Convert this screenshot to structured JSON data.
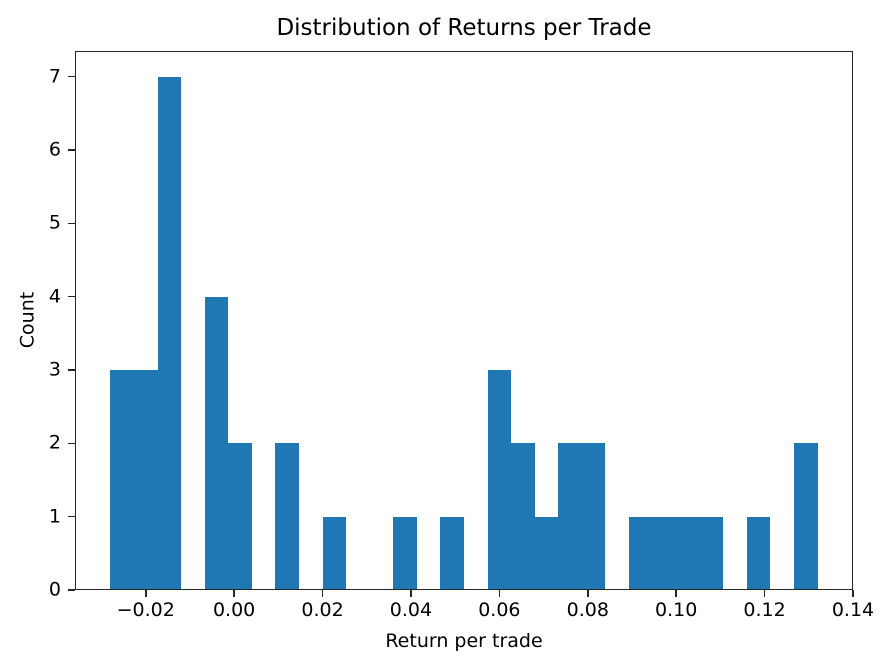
{
  "chart_data": {
    "type": "bar",
    "subtype": "histogram",
    "title": "Distribution of Returns per Trade",
    "xlabel": "Return per trade",
    "ylabel": "Count",
    "bar_color": "#1f77b4",
    "spine_color": "#262626",
    "text_color": "#000000",
    "background_color": "#ffffff",
    "grid": false,
    "legend_position": "none",
    "xlim": [
      -0.036,
      0.14
    ],
    "ylim": [
      0,
      7.35
    ],
    "n_bins": 30,
    "bin_width": 0.0053333,
    "bin_edges": [
      -0.028,
      -0.022667,
      -0.017333,
      -0.012,
      -0.006667,
      -0.001333,
      0.004,
      0.009333,
      0.014667,
      0.02,
      0.025333,
      0.030667,
      0.036,
      0.041333,
      0.046667,
      0.052,
      0.057333,
      0.062667,
      0.068,
      0.073333,
      0.078667,
      0.084,
      0.089333,
      0.094667,
      0.1,
      0.105333,
      0.110667,
      0.116,
      0.121333,
      0.126667,
      0.132
    ],
    "counts": [
      3,
      3,
      7,
      0,
      4,
      2,
      0,
      2,
      0,
      1,
      0,
      0,
      1,
      0,
      1,
      0,
      3,
      2,
      1,
      2,
      2,
      0,
      1,
      1,
      1,
      1,
      0,
      1,
      0,
      2
    ],
    "total_trades": 41,
    "xticks": {
      "values": [
        -0.02,
        0.0,
        0.02,
        0.04,
        0.06,
        0.08,
        0.1,
        0.12,
        0.14
      ],
      "labels": [
        "−0.02",
        "0.00",
        "0.02",
        "0.04",
        "0.06",
        "0.08",
        "0.10",
        "0.12",
        "0.14"
      ]
    },
    "yticks": {
      "values": [
        0,
        1,
        2,
        3,
        4,
        5,
        6,
        7
      ],
      "labels": [
        "0",
        "1",
        "2",
        "3",
        "4",
        "5",
        "6",
        "7"
      ]
    }
  }
}
